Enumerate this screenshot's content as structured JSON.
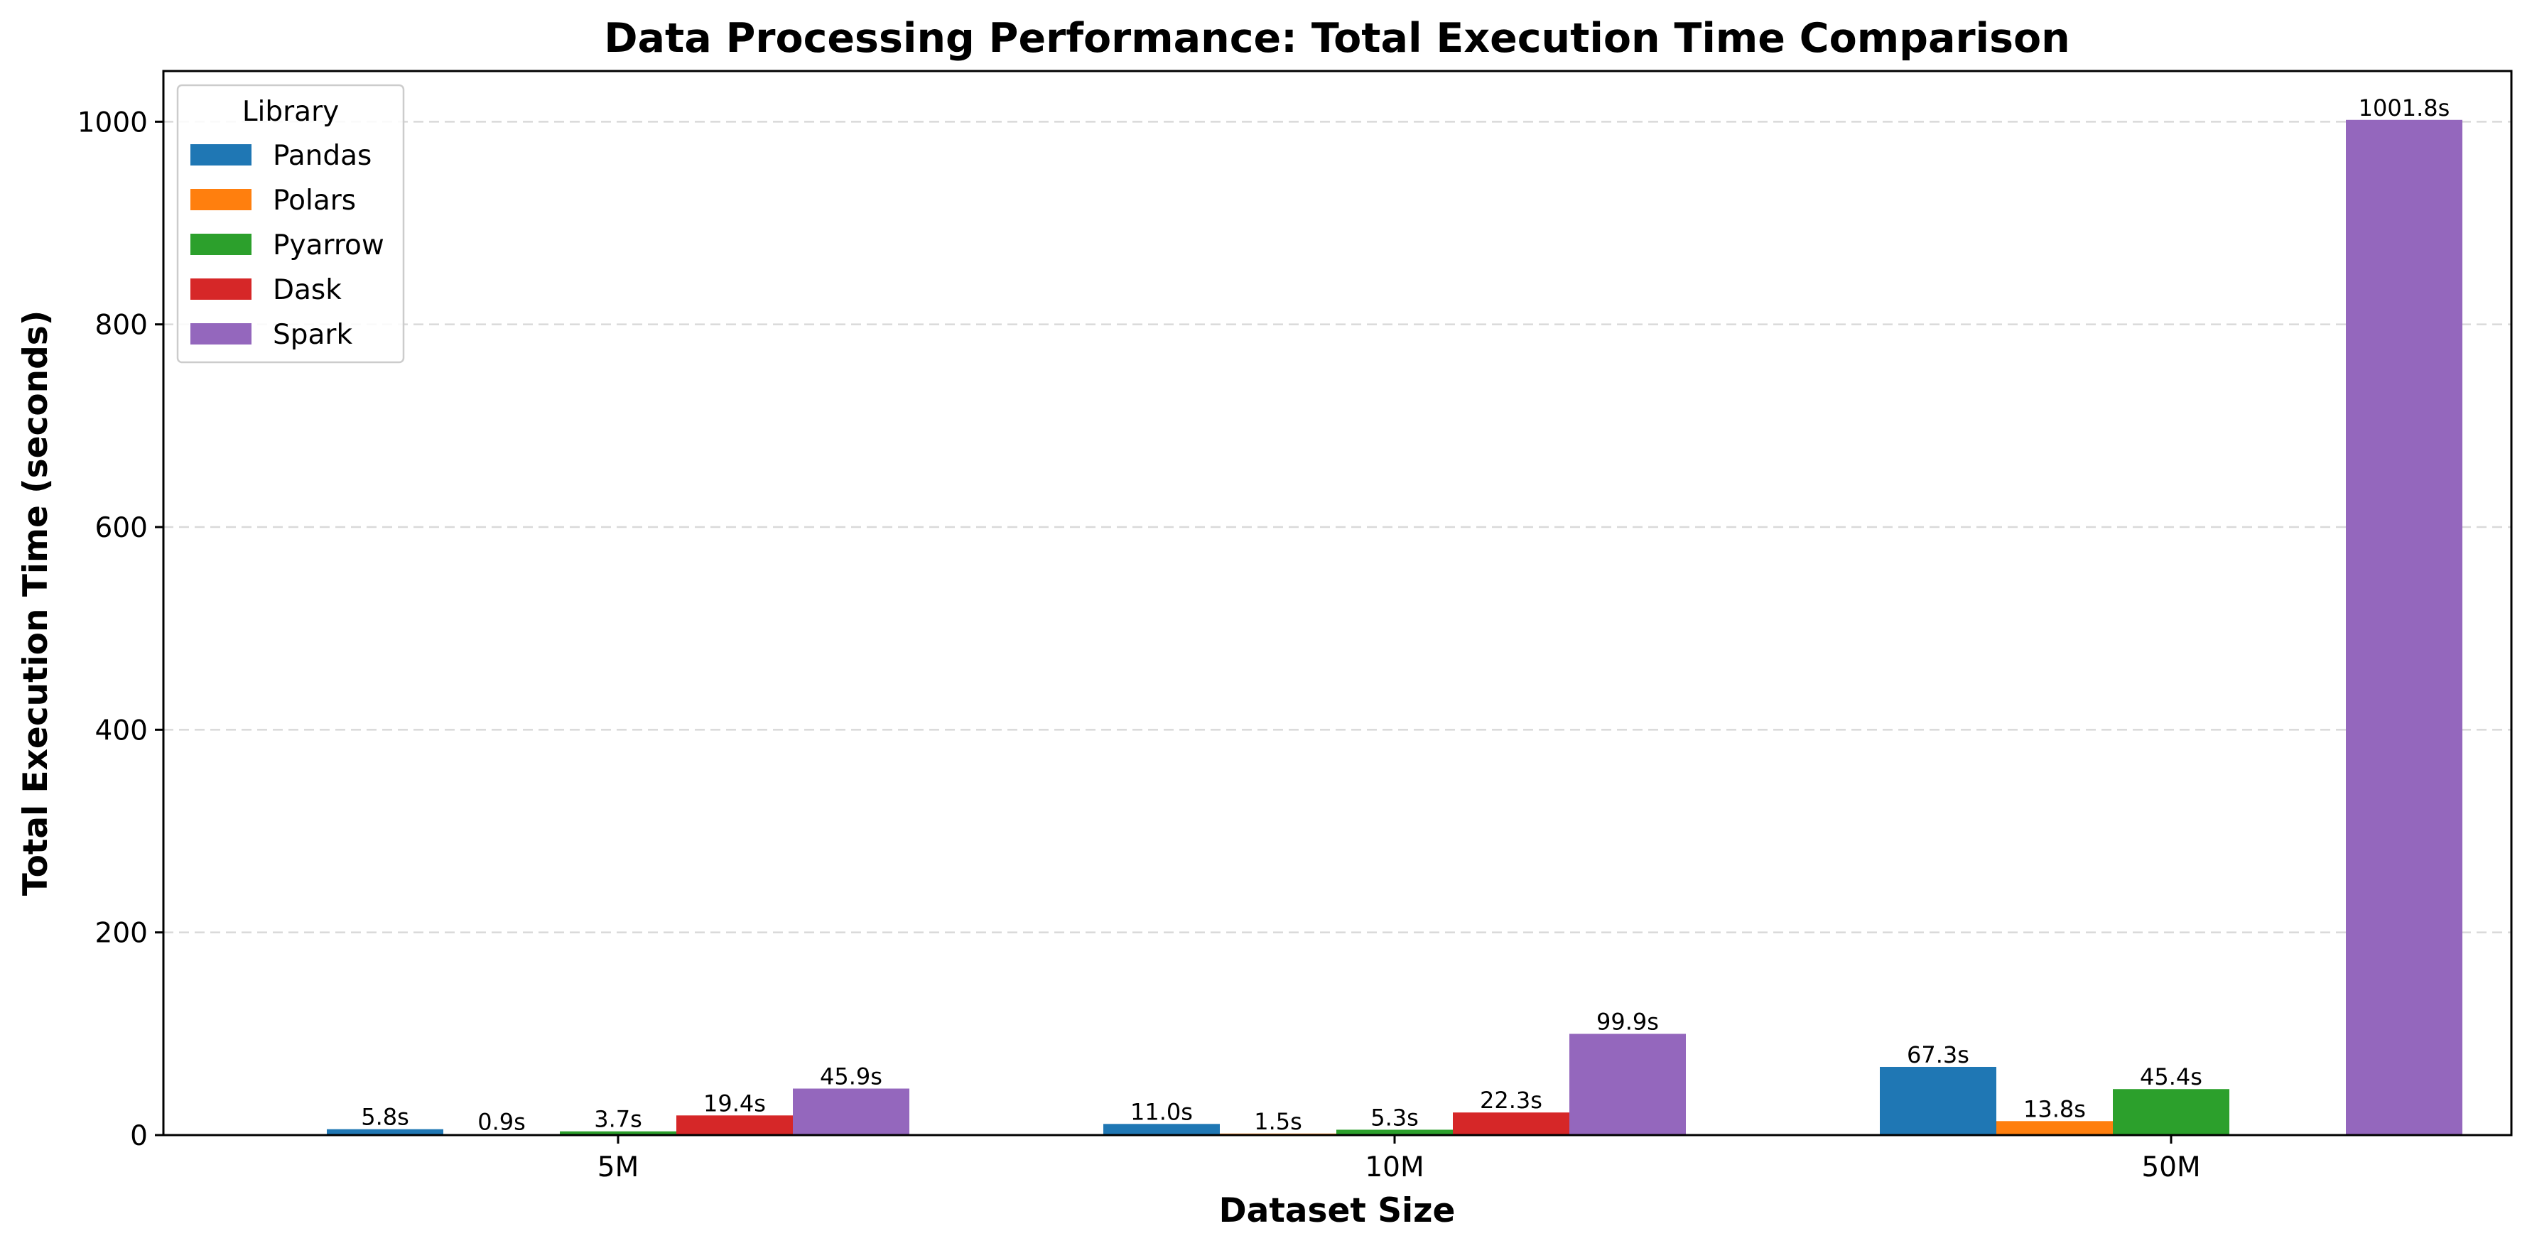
{
  "chart_data": {
    "type": "bar",
    "title": "Data Processing Performance: Total Execution Time Comparison",
    "xlabel": "Dataset Size",
    "ylabel": "Total Execution Time (seconds)",
    "categories": [
      "5M",
      "10M",
      "50M"
    ],
    "ylim": [
      0,
      1050
    ],
    "yticks": [
      0,
      200,
      400,
      600,
      800,
      1000
    ],
    "grid": "y-dashed",
    "legend": {
      "title": "Library",
      "placement": "top-left"
    },
    "series": [
      {
        "name": "Pandas",
        "color": "#1f77b4",
        "values": [
          5.8,
          11.0,
          67.3
        ],
        "labels": [
          "5.8s",
          "11.0s",
          "67.3s"
        ]
      },
      {
        "name": "Polars",
        "color": "#ff7f0e",
        "values": [
          0.9,
          1.5,
          13.8
        ],
        "labels": [
          "0.9s",
          "1.5s",
          "13.8s"
        ]
      },
      {
        "name": "Pyarrow",
        "color": "#2ca02c",
        "values": [
          3.7,
          5.3,
          45.4
        ],
        "labels": [
          "3.7s",
          "5.3s",
          "45.4s"
        ]
      },
      {
        "name": "Dask",
        "color": "#d62728",
        "values": [
          19.4,
          22.3,
          null
        ],
        "labels": [
          "19.4s",
          "22.3s",
          null
        ]
      },
      {
        "name": "Spark",
        "color": "#9467bd",
        "values": [
          45.9,
          99.9,
          1001.8
        ],
        "labels": [
          "45.9s",
          "99.9s",
          "1001.8s"
        ]
      }
    ]
  }
}
